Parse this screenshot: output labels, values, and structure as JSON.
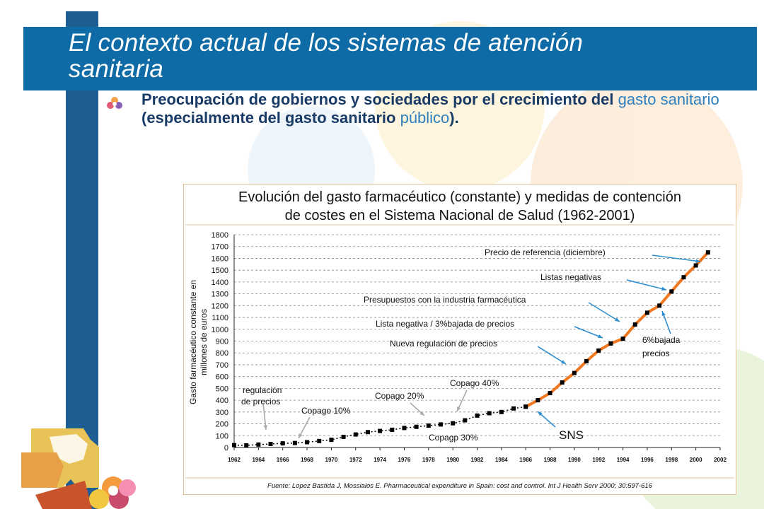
{
  "slide": {
    "title_line1": "El contexto actual de los sistemas  de atención",
    "title_line2": "sanitaria",
    "bullet_part1": "Preocupación de gobiernos y sociedades por el crecimiento del ",
    "bullet_hl1": "gasto sanitario",
    "bullet_part2": " (especialmente del gasto sanitario ",
    "bullet_hl2": "público",
    "bullet_part3": ").",
    "colors": {
      "title_band": "#0e6ba6",
      "bullet_text": "#1a3b66",
      "highlight": "#2e7fbd",
      "sidebar": "#1f5e93"
    },
    "icons": [
      "flower-bullet-icon",
      "puzzle-decoration-icon",
      "flower-decoration-icon"
    ]
  },
  "chart_data": {
    "type": "line",
    "title_line1": "Evolución del gasto farmacéutico (constante) y medidas de contención",
    "title_line2": "de costes en el Sistema Nacional de Salud  (1962-2001)",
    "ylabel_line1": "Gasto farmacéutico constante en",
    "ylabel_line2": "millones de euros",
    "xlabel": "",
    "ylim": [
      0,
      1800
    ],
    "yticks": [
      0,
      100,
      200,
      300,
      400,
      500,
      600,
      700,
      800,
      900,
      1000,
      1100,
      1200,
      1300,
      1400,
      1500,
      1600,
      1700,
      1800
    ],
    "xlim": [
      1962,
      2002
    ],
    "xticks": [
      1962,
      1964,
      1966,
      1968,
      1970,
      1972,
      1974,
      1976,
      1978,
      1980,
      1982,
      1984,
      1986,
      1988,
      1990,
      1992,
      1994,
      1996,
      1998,
      2000,
      2002
    ],
    "grid": "horizontal dashed",
    "colors": {
      "pre_sns": "#000000",
      "sns": "#f07820",
      "marker": "#000000",
      "annotation": "#2f8fd0"
    },
    "series": [
      {
        "x": [
          1962,
          1963,
          1964,
          1965,
          1966,
          1967,
          1968,
          1969,
          1970,
          1971,
          1972,
          1973,
          1974,
          1975,
          1976,
          1977,
          1978,
          1979,
          1980,
          1981,
          1982,
          1983,
          1984,
          1985,
          1986
        ],
        "values": [
          20,
          18,
          25,
          30,
          35,
          38,
          45,
          55,
          65,
          90,
          110,
          130,
          140,
          150,
          165,
          175,
          185,
          195,
          205,
          230,
          270,
          290,
          300,
          330,
          345
        ]
      },
      {
        "name": "SNS",
        "x": [
          1986,
          1987,
          1988,
          1989,
          1990,
          1991,
          1992,
          1993,
          1994,
          1995,
          1996,
          1997,
          1998,
          1999,
          2000,
          2001
        ],
        "values": [
          345,
          400,
          460,
          550,
          630,
          730,
          820,
          880,
          920,
          1040,
          1140,
          1200,
          1320,
          1440,
          1540,
          1650
        ]
      }
    ],
    "annotations": [
      {
        "text": "regulación",
        "target_x": 1965,
        "target_y": 150
      },
      {
        "text": "de precios",
        "target_x": 1965,
        "target_y": 150
      },
      {
        "text": "Copago 10%",
        "target_x": 1968,
        "target_y": 60
      },
      {
        "text": "Copago 20%",
        "target_x": 1978,
        "target_y": 190
      },
      {
        "text": "Copago 40%",
        "target_x": 1980,
        "target_y": 300
      },
      {
        "text": "Copagp 30%",
        "target_x": 1980,
        "target_y": 210
      },
      {
        "text": "SNS",
        "target_x": 1987,
        "target_y": 360
      },
      {
        "text": "Nueva regulación de precios",
        "target_x": 1990,
        "target_y": 700
      },
      {
        "text": "Lista negativa / 3%bajada de precios",
        "target_x": 1993,
        "target_y": 900
      },
      {
        "text": "Presupuestos con la industria farmacéutica",
        "target_x": 1995,
        "target_y": 1060
      },
      {
        "text": "Listas negativas",
        "target_x": 1998,
        "target_y": 1320
      },
      {
        "text": "Precio de referencia (diciembre)",
        "target_x": 2000,
        "target_y": 1600
      },
      {
        "text": "6%bajada",
        "target_x": 1997,
        "target_y": 1180
      },
      {
        "text": "precios",
        "target_x": 1997,
        "target_y": 1180
      }
    ],
    "source": "Fuente: Lopez Bastida J, Mossialos E. Pharmaceutical expenditure in Spain: cost and control. Int J Health Serv 2000; 30:597-616"
  }
}
